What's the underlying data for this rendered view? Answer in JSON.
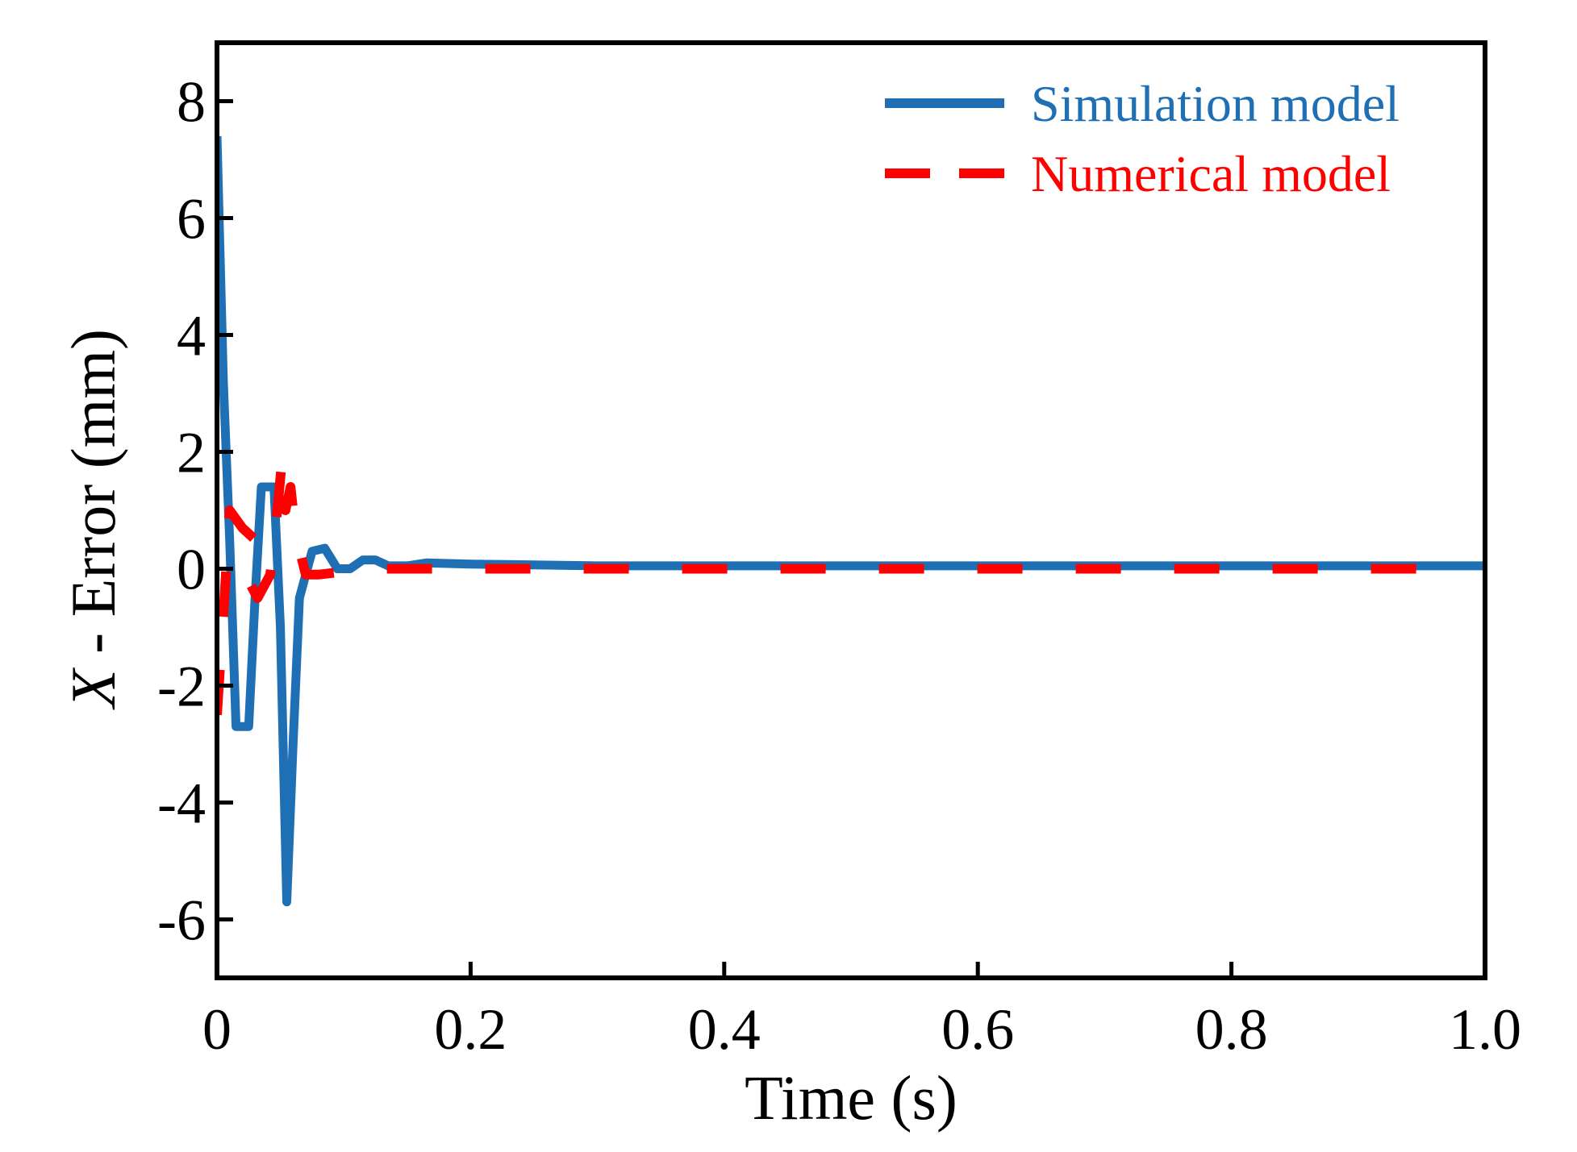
{
  "chart_data": {
    "type": "line",
    "xlabel": "Time (s)",
    "ylabel_var": "X",
    "ylabel_rest": " - Error (mm)",
    "xlim": [
      0,
      1.0
    ],
    "ylim": [
      -7,
      9
    ],
    "xticks": [
      0,
      0.2,
      0.4,
      0.6,
      0.8,
      1.0
    ],
    "xtick_labels": [
      "0",
      "0.2",
      "0.4",
      "0.6",
      "0.8",
      "1.0"
    ],
    "yticks": [
      8,
      6,
      4,
      2,
      0,
      -2,
      -4,
      -6
    ],
    "ytick_labels": [
      "8",
      "6",
      "4",
      "2",
      "0",
      "-2",
      "-4",
      "-6"
    ],
    "grid": false,
    "legend_position": "top-right",
    "series": [
      {
        "name": "Simulation model",
        "color": "#1f6fb5",
        "style": "solid",
        "points": [
          [
            0.0,
            7.4
          ],
          [
            0.005,
            3.2
          ],
          [
            0.01,
            0.5
          ],
          [
            0.015,
            -2.7
          ],
          [
            0.025,
            -2.7
          ],
          [
            0.03,
            -0.5
          ],
          [
            0.035,
            1.4
          ],
          [
            0.045,
            1.4
          ],
          [
            0.05,
            -1.0
          ],
          [
            0.055,
            -5.7
          ],
          [
            0.06,
            -3.0
          ],
          [
            0.065,
            -0.5
          ],
          [
            0.075,
            0.3
          ],
          [
            0.085,
            0.35
          ],
          [
            0.095,
            0.0
          ],
          [
            0.105,
            0.0
          ],
          [
            0.115,
            0.15
          ],
          [
            0.125,
            0.15
          ],
          [
            0.135,
            0.05
          ],
          [
            0.15,
            0.05
          ],
          [
            0.165,
            0.1
          ],
          [
            0.2,
            0.08
          ],
          [
            0.3,
            0.05
          ],
          [
            0.5,
            0.05
          ],
          [
            0.7,
            0.05
          ],
          [
            1.0,
            0.05
          ]
        ]
      },
      {
        "name": "Numerical model",
        "color": "#ff0000",
        "style": "dashed",
        "points": [
          [
            0.0,
            -2.5
          ],
          [
            0.005,
            -0.8
          ],
          [
            0.01,
            1.0
          ],
          [
            0.02,
            0.7
          ],
          [
            0.03,
            0.5
          ],
          [
            0.02,
            0.0
          ],
          [
            0.032,
            -0.5
          ],
          [
            0.042,
            -0.1
          ],
          [
            0.048,
            1.1
          ],
          [
            0.051,
            1.8
          ],
          [
            0.054,
            1.0
          ],
          [
            0.058,
            1.4
          ],
          [
            0.062,
            0.6
          ],
          [
            0.07,
            -0.1
          ],
          [
            0.08,
            -0.1
          ],
          [
            0.1,
            -0.05
          ],
          [
            0.13,
            0.0
          ],
          [
            0.16,
            0.0
          ],
          [
            0.2,
            0.0
          ],
          [
            0.4,
            0.0
          ],
          [
            0.6,
            0.0
          ],
          [
            0.8,
            0.0
          ],
          [
            0.97,
            0.0
          ]
        ]
      }
    ]
  }
}
